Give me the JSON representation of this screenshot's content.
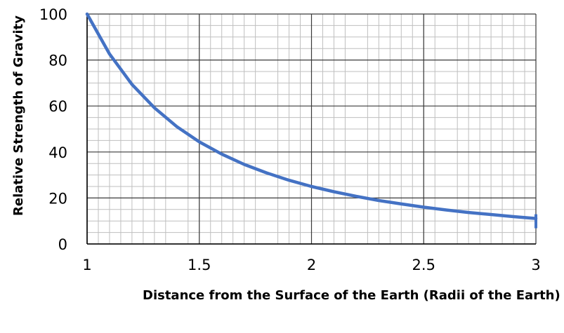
{
  "chart_data": {
    "type": "line",
    "title": "",
    "xlabel": "Distance from the Surface of the Earth (Radii of the Earth)",
    "ylabel": "Relative Strength of Gravity",
    "xlim": [
      1,
      3
    ],
    "ylim": [
      0,
      100
    ],
    "x_ticks": [
      "1",
      "1.5",
      "2",
      "2.5",
      "3"
    ],
    "y_ticks": [
      "0",
      "20",
      "40",
      "60",
      "80",
      "100"
    ],
    "grid": true,
    "series": [
      {
        "color": "#4472C4",
        "x": [
          1,
          1.1,
          1.2,
          1.3,
          1.4,
          1.5,
          1.6,
          1.7,
          1.8,
          1.9,
          2,
          2.1,
          2.2,
          2.3,
          2.4,
          2.5,
          2.6,
          2.7,
          2.8,
          2.9,
          3
        ],
        "values": [
          100,
          82.6,
          69.4,
          59.2,
          51.0,
          44.4,
          39.1,
          34.6,
          30.9,
          27.7,
          25.0,
          22.7,
          20.7,
          18.9,
          17.4,
          16.0,
          14.8,
          13.7,
          12.8,
          11.9,
          11.1
        ]
      }
    ]
  }
}
